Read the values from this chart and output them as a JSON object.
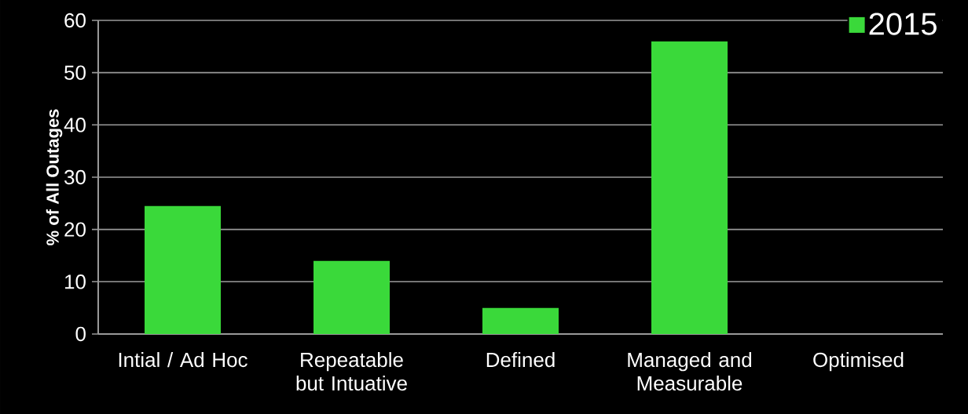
{
  "chart_data": {
    "type": "bar",
    "ylabel": "% of All Outages",
    "categories": [
      "Intial / Ad Hoc",
      "Repeatable but Intuative",
      "Defined",
      "Managed and Measurable",
      "Optimised"
    ],
    "series": [
      {
        "name": "2015",
        "color": "#3ad93a",
        "values": [
          24.5,
          14,
          5,
          56,
          0
        ]
      }
    ],
    "ylim": [
      0,
      60
    ],
    "yticks": [
      0,
      10,
      20,
      30,
      40,
      50,
      60
    ],
    "grid": "y",
    "legend": "top right"
  }
}
